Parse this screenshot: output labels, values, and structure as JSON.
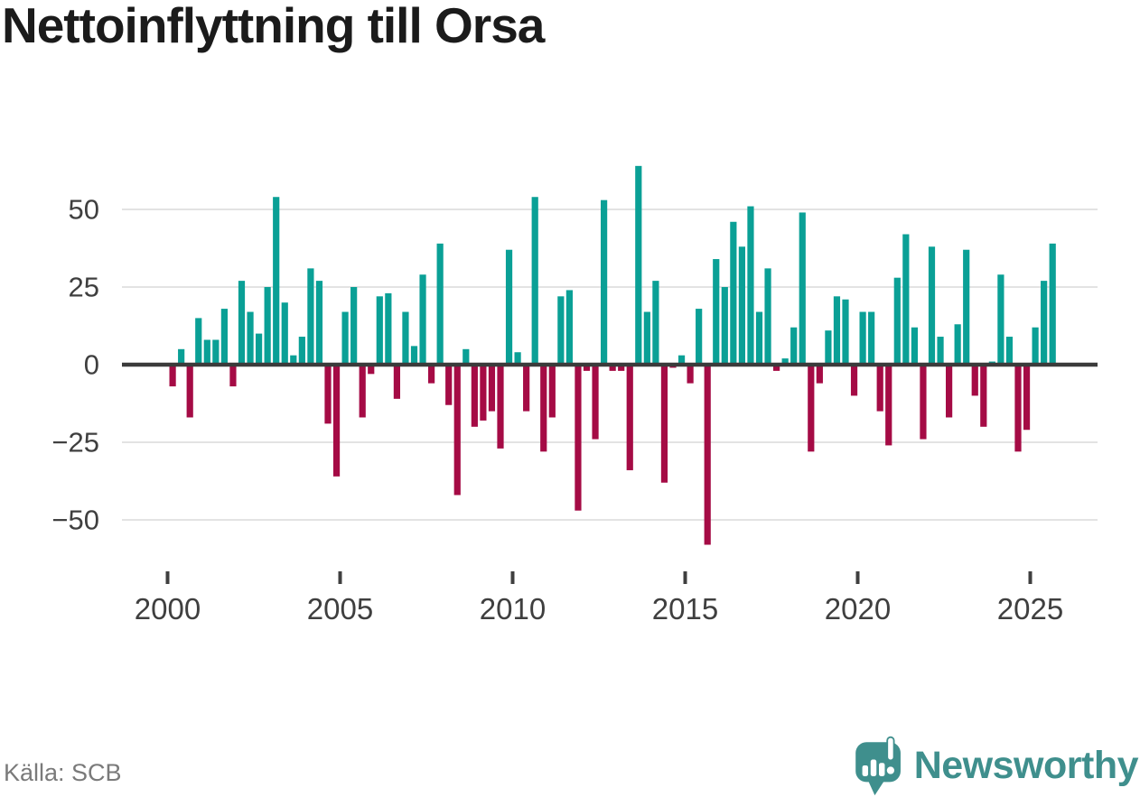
{
  "title": "Nettoinflyttning till Orsa",
  "source": "Källa: SCB",
  "branding": {
    "logo_text": "Newsworthy",
    "logo_icon": "bar-chart-speech-bubble-icon"
  },
  "colors": {
    "positive": "#0aa096",
    "negative": "#a50b45",
    "zero_axis": "#3b3b3b",
    "gridline": "#e3e3e3",
    "tick_label": "#3f3f3f",
    "title_text": "#1b1b1b",
    "source_text": "#7a7a7a",
    "brand_teal": "#3f8f8d"
  },
  "chart_data": {
    "type": "bar",
    "title": "Nettoinflyttning till Orsa",
    "xlabel": "",
    "ylabel": "",
    "frequency": "quarterly",
    "start_period": "2000-Q1",
    "end_period": "2025-Q3",
    "ylim": [
      -65,
      70
    ],
    "grid": "horizontal",
    "legend": "none",
    "y_ticks": [
      50,
      25,
      0,
      -25,
      -50
    ],
    "y_tick_labels": [
      "50",
      "25",
      "0",
      "−25",
      "−50"
    ],
    "x_ticks": [
      2000,
      2005,
      2010,
      2015,
      2020,
      2025
    ],
    "x_tick_labels": [
      "2000",
      "2005",
      "2010",
      "2015",
      "2020",
      "2025"
    ],
    "values": [
      -7,
      5,
      -17,
      15,
      8,
      8,
      18,
      -7,
      27,
      17,
      10,
      25,
      54,
      20,
      3,
      9,
      31,
      27,
      -19,
      -36,
      17,
      25,
      -17,
      -3,
      22,
      23,
      -11,
      17,
      6,
      29,
      -6,
      39,
      -13,
      -42,
      5,
      -20,
      -18,
      -15,
      -27,
      37,
      4,
      -15,
      54,
      -28,
      -17,
      22,
      24,
      -47,
      -2,
      -24,
      53,
      -2,
      -2,
      -34,
      64,
      17,
      27,
      -38,
      -1,
      3,
      -6,
      18,
      -58,
      34,
      25,
      46,
      38,
      51,
      17,
      31,
      -2,
      2,
      12,
      49,
      -28,
      -6,
      11,
      22,
      21,
      -10,
      17,
      17,
      -15,
      -26,
      28,
      42,
      12,
      -24,
      38,
      9,
      -17,
      13,
      37,
      -10,
      -20,
      1,
      29,
      9,
      -28,
      -21,
      12,
      27,
      39
    ]
  }
}
